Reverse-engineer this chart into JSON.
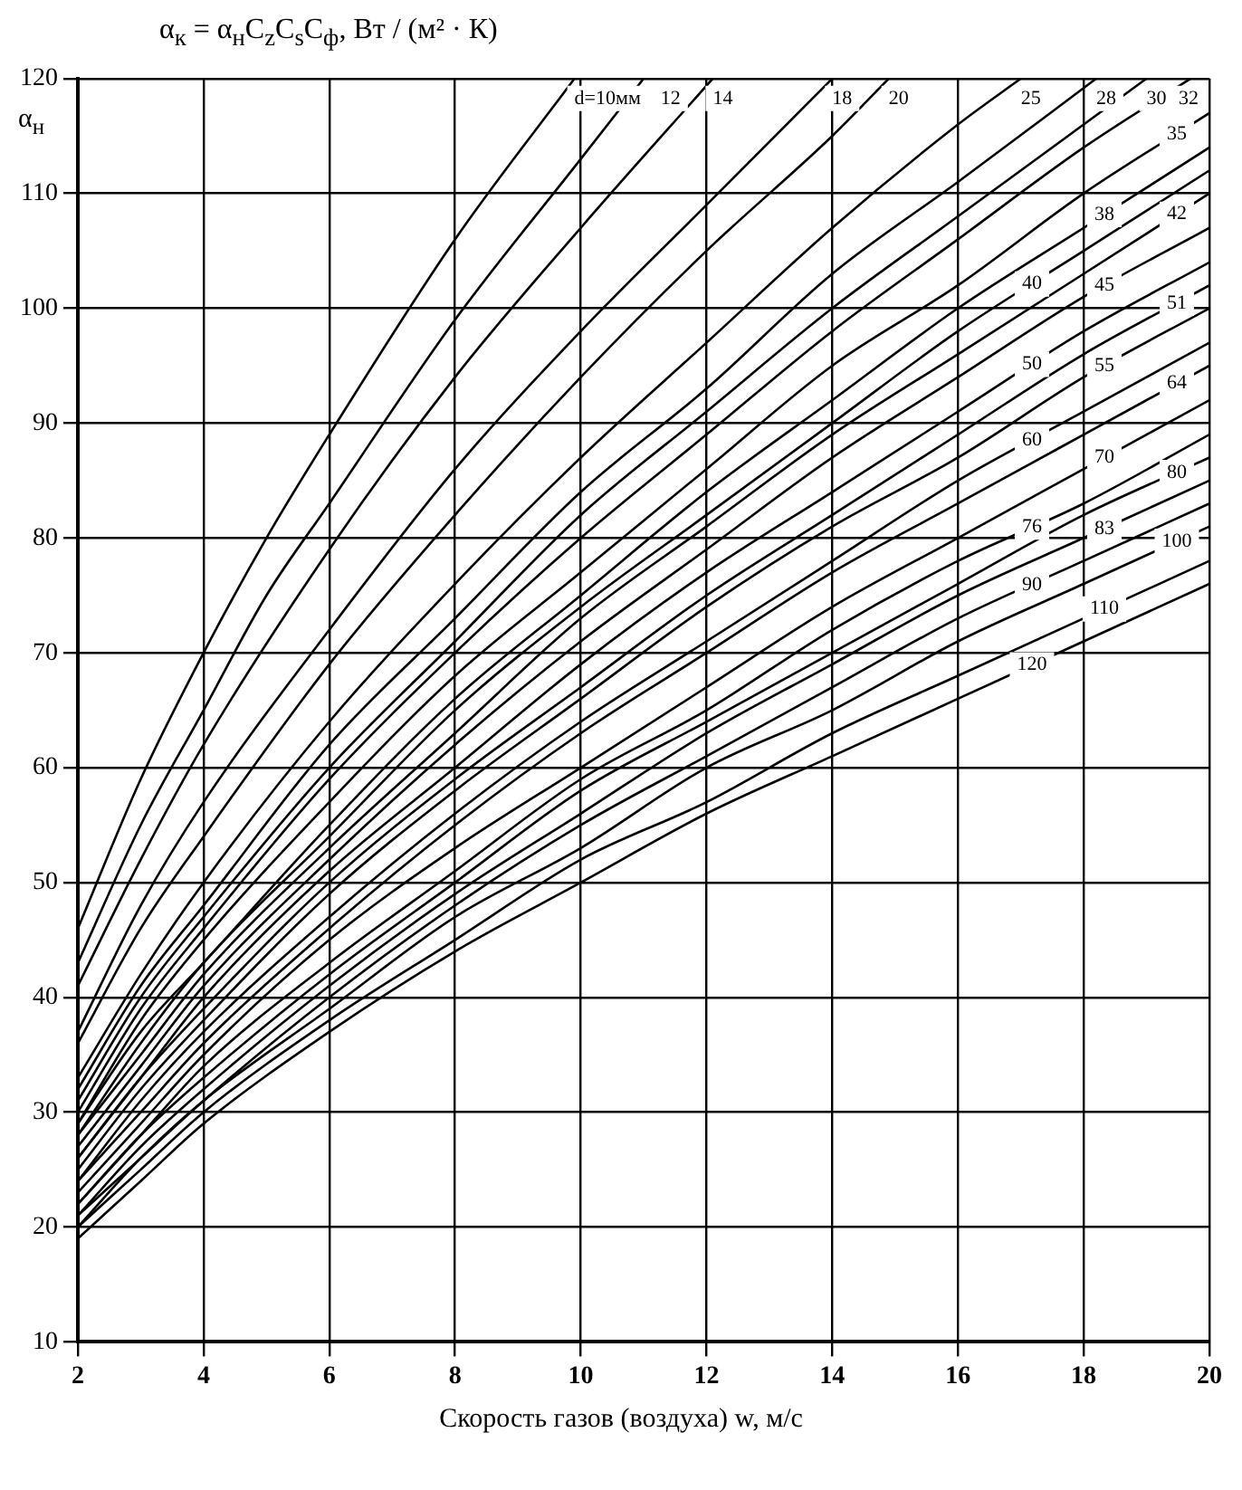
{
  "chart_data": {
    "type": "line",
    "title": "α$_{к}$ = α$_{н}$C$_{z}$C$_{s}$C$_{ф}$,  Вт / (м² · К)",
    "xlabel": "Скорость газов (воздуха) w, м/с",
    "ylabel": "α$_{н}$",
    "xlim": [
      2,
      20
    ],
    "ylim": [
      10,
      120
    ],
    "xticks": [
      2,
      4,
      6,
      8,
      10,
      12,
      14,
      16,
      18,
      20
    ],
    "yticks": [
      10,
      20,
      30,
      40,
      50,
      60,
      70,
      80,
      90,
      100,
      110,
      120
    ],
    "grid": true,
    "legend": false,
    "marker": "none",
    "line_style": "solid",
    "series": [
      {
        "name": "d=10мм",
        "color": "#000000",
        "x": [
          2,
          3,
          4,
          5,
          6,
          8,
          9.9
        ],
        "values": [
          46,
          59,
          70,
          80,
          89,
          106,
          120
        ]
      },
      {
        "name": "12",
        "color": "#000000",
        "x": [
          2,
          3,
          4,
          5,
          6,
          8,
          10,
          11
        ],
        "values": [
          43,
          55,
          65,
          75,
          83,
          99,
          113,
          120
        ]
      },
      {
        "name": "14",
        "color": "#000000",
        "x": [
          2,
          3,
          4,
          6,
          8,
          10,
          12.1
        ],
        "values": [
          41,
          52,
          62,
          79,
          94,
          107,
          120
        ]
      },
      {
        "name": "18",
        "color": "#000000",
        "x": [
          2,
          3,
          4,
          6,
          8,
          10,
          12,
          14
        ],
        "values": [
          37,
          48,
          57,
          72,
          86,
          98,
          109,
          120
        ]
      },
      {
        "name": "20",
        "color": "#000000",
        "x": [
          2,
          3,
          4,
          6,
          8,
          10,
          12,
          14,
          14.9
        ],
        "values": [
          36,
          46,
          54,
          69,
          82,
          94,
          105,
          115,
          120
        ]
      },
      {
        "name": "25",
        "color": "#000000",
        "x": [
          2,
          3,
          4,
          6,
          8,
          10,
          12,
          14,
          16,
          17
        ],
        "values": [
          33,
          42,
          50,
          64,
          76,
          87,
          97,
          107,
          116,
          120
        ]
      },
      {
        "name": "28",
        "color": "#000000",
        "x": [
          2,
          3,
          4,
          6,
          8,
          10,
          12,
          14,
          16,
          18.2
        ],
        "values": [
          32,
          41,
          48,
          62,
          73,
          84,
          93,
          103,
          111,
          120
        ]
      },
      {
        "name": "30",
        "color": "#000000",
        "x": [
          2,
          3,
          4,
          6,
          8,
          10,
          12,
          14,
          16,
          18,
          19
        ],
        "values": [
          31,
          40,
          47,
          60,
          71,
          82,
          91,
          100,
          108,
          116,
          120
        ]
      },
      {
        "name": "32",
        "color": "#000000",
        "x": [
          2,
          3,
          4,
          6,
          8,
          10,
          12,
          14,
          16,
          18,
          19.7
        ],
        "values": [
          30,
          39,
          46,
          59,
          70,
          80,
          89,
          98,
          106,
          114,
          120
        ]
      },
      {
        "name": "35",
        "color": "#000000",
        "x": [
          2,
          3,
          4,
          6,
          8,
          10,
          12,
          14,
          16,
          18,
          20
        ],
        "values": [
          29,
          38,
          45,
          57,
          68,
          77,
          86,
          95,
          102,
          110,
          117
        ]
      },
      {
        "name": "38",
        "color": "#000000",
        "x": [
          2,
          3,
          4,
          6,
          8,
          10,
          12,
          14,
          16,
          18,
          20
        ],
        "values": [
          29,
          37,
          43,
          55,
          66,
          75,
          84,
          92,
          100,
          107,
          114
        ]
      },
      {
        "name": "40",
        "color": "#000000",
        "x": [
          2,
          3,
          4,
          6,
          8,
          10,
          12,
          14,
          16,
          18,
          20
        ],
        "values": [
          28,
          36,
          43,
          54,
          65,
          74,
          82,
          90,
          98,
          105,
          112
        ]
      },
      {
        "name": "42",
        "color": "#000000",
        "x": [
          2,
          3,
          4,
          6,
          8,
          10,
          12,
          14,
          16,
          18,
          20
        ],
        "values": [
          28,
          35,
          42,
          53,
          63,
          73,
          81,
          89,
          96,
          103,
          110
        ]
      },
      {
        "name": "45",
        "color": "#000000",
        "x": [
          2,
          3,
          4,
          6,
          8,
          10,
          12,
          14,
          16,
          18,
          20
        ],
        "values": [
          27,
          34,
          41,
          52,
          62,
          71,
          79,
          87,
          94,
          101,
          107
        ]
      },
      {
        "name": "50",
        "color": "#000000",
        "x": [
          2,
          3,
          4,
          6,
          8,
          10,
          12,
          14,
          16,
          18,
          20
        ],
        "values": [
          26,
          33,
          40,
          51,
          60,
          69,
          77,
          84,
          91,
          98,
          104
        ]
      },
      {
        "name": "51",
        "color": "#000000",
        "x": [
          2,
          3,
          4,
          6,
          8,
          10,
          12,
          14,
          16,
          18,
          20
        ],
        "values": [
          26,
          33,
          39,
          50,
          59,
          67,
          75,
          82,
          89,
          96,
          102
        ]
      },
      {
        "name": "55",
        "color": "#000000",
        "x": [
          2,
          3,
          4,
          6,
          8,
          10,
          12,
          14,
          16,
          18,
          20
        ],
        "values": [
          25,
          32,
          38,
          49,
          58,
          66,
          74,
          81,
          87,
          94,
          100
        ]
      },
      {
        "name": "60",
        "color": "#000000",
        "x": [
          2,
          3,
          4,
          6,
          8,
          10,
          12,
          14,
          16,
          18,
          20
        ],
        "values": [
          24,
          31,
          37,
          47,
          56,
          64,
          71,
          78,
          85,
          91,
          97
        ]
      },
      {
        "name": "64",
        "color": "#000000",
        "x": [
          2,
          3,
          4,
          6,
          8,
          10,
          12,
          14,
          16,
          18,
          20
        ],
        "values": [
          24,
          30,
          36,
          46,
          55,
          63,
          70,
          77,
          83,
          89,
          95
        ]
      },
      {
        "name": "70",
        "color": "#000000",
        "x": [
          2,
          3,
          4,
          6,
          8,
          10,
          12,
          14,
          16,
          18,
          20
        ],
        "values": [
          23,
          29,
          35,
          45,
          53,
          60,
          67,
          74,
          80,
          86,
          92
        ]
      },
      {
        "name": "76",
        "color": "#000000",
        "x": [
          2,
          3,
          4,
          6,
          8,
          10,
          12,
          14,
          16,
          18,
          20
        ],
        "values": [
          22,
          28,
          34,
          43,
          51,
          59,
          65,
          72,
          78,
          83,
          89
        ]
      },
      {
        "name": "80",
        "color": "#000000",
        "x": [
          2,
          3,
          4,
          6,
          8,
          10,
          12,
          14,
          16,
          18,
          20
        ],
        "values": [
          22,
          28,
          33,
          42,
          50,
          58,
          64,
          70,
          76,
          82,
          87
        ]
      },
      {
        "name": "83",
        "color": "#000000",
        "x": [
          2,
          3,
          4,
          6,
          8,
          10,
          12,
          14,
          16,
          18,
          20
        ],
        "values": [
          21,
          27,
          32,
          41,
          49,
          56,
          63,
          69,
          75,
          80,
          85
        ]
      },
      {
        "name": "90",
        "color": "#000000",
        "x": [
          2,
          3,
          4,
          6,
          8,
          10,
          12,
          14,
          16,
          18,
          20
        ],
        "values": [
          21,
          26,
          31,
          40,
          48,
          55,
          61,
          67,
          73,
          78,
          83
        ]
      },
      {
        "name": "100",
        "color": "#000000",
        "x": [
          2,
          3,
          4,
          6,
          8,
          10,
          12,
          14,
          16,
          18,
          20
        ],
        "values": [
          20,
          26,
          31,
          39,
          47,
          53,
          60,
          65,
          71,
          76,
          81
        ]
      },
      {
        "name": "110",
        "color": "#000000",
        "x": [
          2,
          3,
          4,
          6,
          8,
          10,
          12,
          14,
          16,
          18,
          20
        ],
        "values": [
          20,
          25,
          30,
          38,
          45,
          52,
          57,
          63,
          68,
          73,
          78
        ]
      },
      {
        "name": "120",
        "color": "#000000",
        "x": [
          2,
          3,
          4,
          6,
          8,
          10,
          12,
          14,
          16,
          18,
          20
        ],
        "values": [
          19,
          24,
          29,
          37,
          44,
          50,
          56,
          61,
          66,
          71,
          76
        ]
      }
    ]
  }
}
